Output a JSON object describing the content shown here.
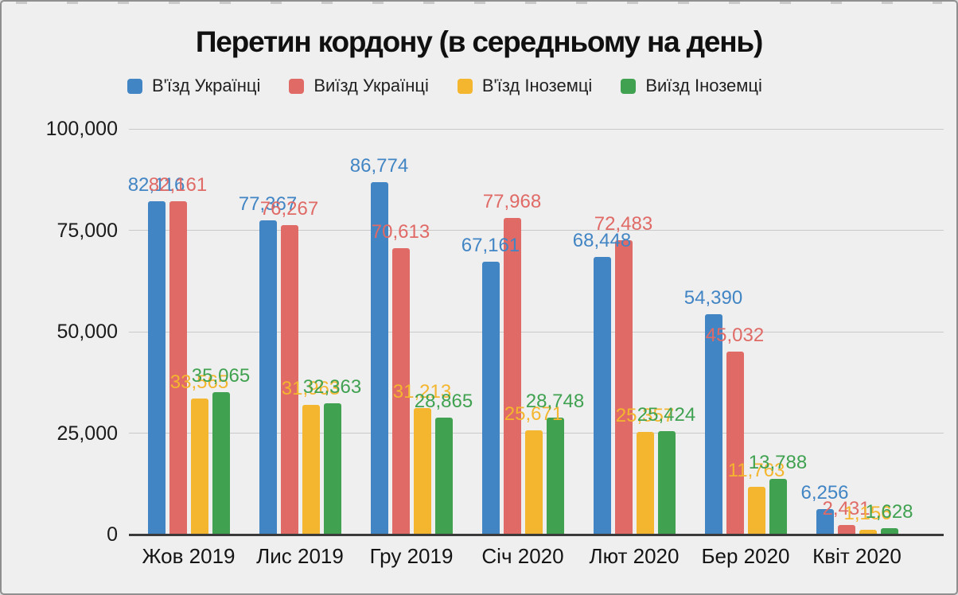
{
  "window": {
    "background": "#EFEFEF",
    "border_color": "#8F8F8F"
  },
  "chart_data": {
    "type": "bar",
    "title": "Перетин кордону (в середньому на день)",
    "categories": [
      "Жов 2019",
      "Лис 2019",
      "Гру 2019",
      "Січ 2020",
      "Лют 2020",
      "Бер 2020",
      "Квіт 2020"
    ],
    "series": [
      {
        "name": "В'їзд Українці",
        "color": "#4285C4",
        "values": [
          82116,
          77367,
          86774,
          67161,
          68448,
          54390,
          6256
        ]
      },
      {
        "name": "Виїзд Українці",
        "color": "#E06A66",
        "values": [
          82161,
          76267,
          70613,
          77968,
          72483,
          45032,
          2431
        ]
      },
      {
        "name": "В'їзд Іноземці",
        "color": "#F4B62E",
        "values": [
          33565,
          31963,
          31213,
          25671,
          25357,
          11763,
          1156
        ]
      },
      {
        "name": "Виїзд Іноземці",
        "color": "#40A251",
        "values": [
          35065,
          32363,
          28865,
          28748,
          25424,
          13788,
          1628
        ]
      }
    ],
    "ylim": [
      0,
      100000
    ],
    "y_tick_step": 25000,
    "y_tick_labels": [
      "0",
      "25,000",
      "50,000",
      "75,000",
      "100,000"
    ],
    "grid": true,
    "legend_position": "top",
    "value_labels": true,
    "axis_color": "#3A3A3A",
    "gridline_color": "#C9C9C9",
    "text_color": "#1B1B1B"
  }
}
